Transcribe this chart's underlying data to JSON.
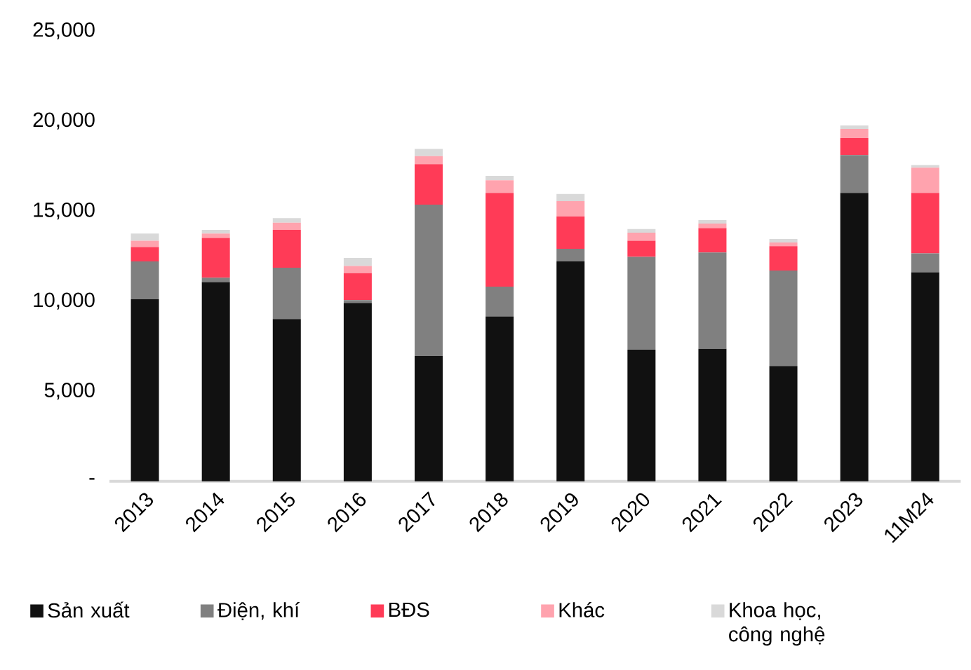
{
  "chart_data": {
    "type": "bar",
    "stacked": true,
    "categories": [
      "2013",
      "2014",
      "2015",
      "2016",
      "2017",
      "2018",
      "2019",
      "2020",
      "2021",
      "2022",
      "2023",
      "11M24"
    ],
    "series": [
      {
        "name": "Sản xuất",
        "color": "#111111",
        "values": [
          10100,
          11050,
          9000,
          9900,
          6950,
          9150,
          12200,
          7300,
          7350,
          6400,
          16000,
          11600
        ]
      },
      {
        "name": "Điện, khí",
        "color": "#808080",
        "values": [
          2100,
          250,
          2850,
          150,
          8400,
          1650,
          700,
          5150,
          5350,
          5300,
          2100,
          1050
        ]
      },
      {
        "name": "BĐS",
        "color": "#ff3b57",
        "values": [
          800,
          2200,
          2100,
          1500,
          2250,
          5200,
          1800,
          900,
          1350,
          1350,
          950,
          3350
        ]
      },
      {
        "name": "Khác",
        "color": "#ffa3ae",
        "values": [
          350,
          250,
          400,
          400,
          450,
          700,
          850,
          450,
          250,
          200,
          500,
          1400
        ]
      },
      {
        "name": "Khoa học, công nghệ",
        "color": "#d9d9d9",
        "values": [
          400,
          200,
          250,
          450,
          400,
          250,
          400,
          200,
          200,
          200,
          200,
          150
        ]
      }
    ],
    "ylim": [
      0,
      25000
    ],
    "yticks": [
      {
        "value": 0,
        "label": "-"
      },
      {
        "value": 5000,
        "label": "5,000"
      },
      {
        "value": 10000,
        "label": "10,000"
      },
      {
        "value": 15000,
        "label": "15,000"
      },
      {
        "value": 20000,
        "label": "20,000"
      },
      {
        "value": 25000,
        "label": "25,000"
      }
    ],
    "grid": false,
    "legend": "bottom"
  }
}
